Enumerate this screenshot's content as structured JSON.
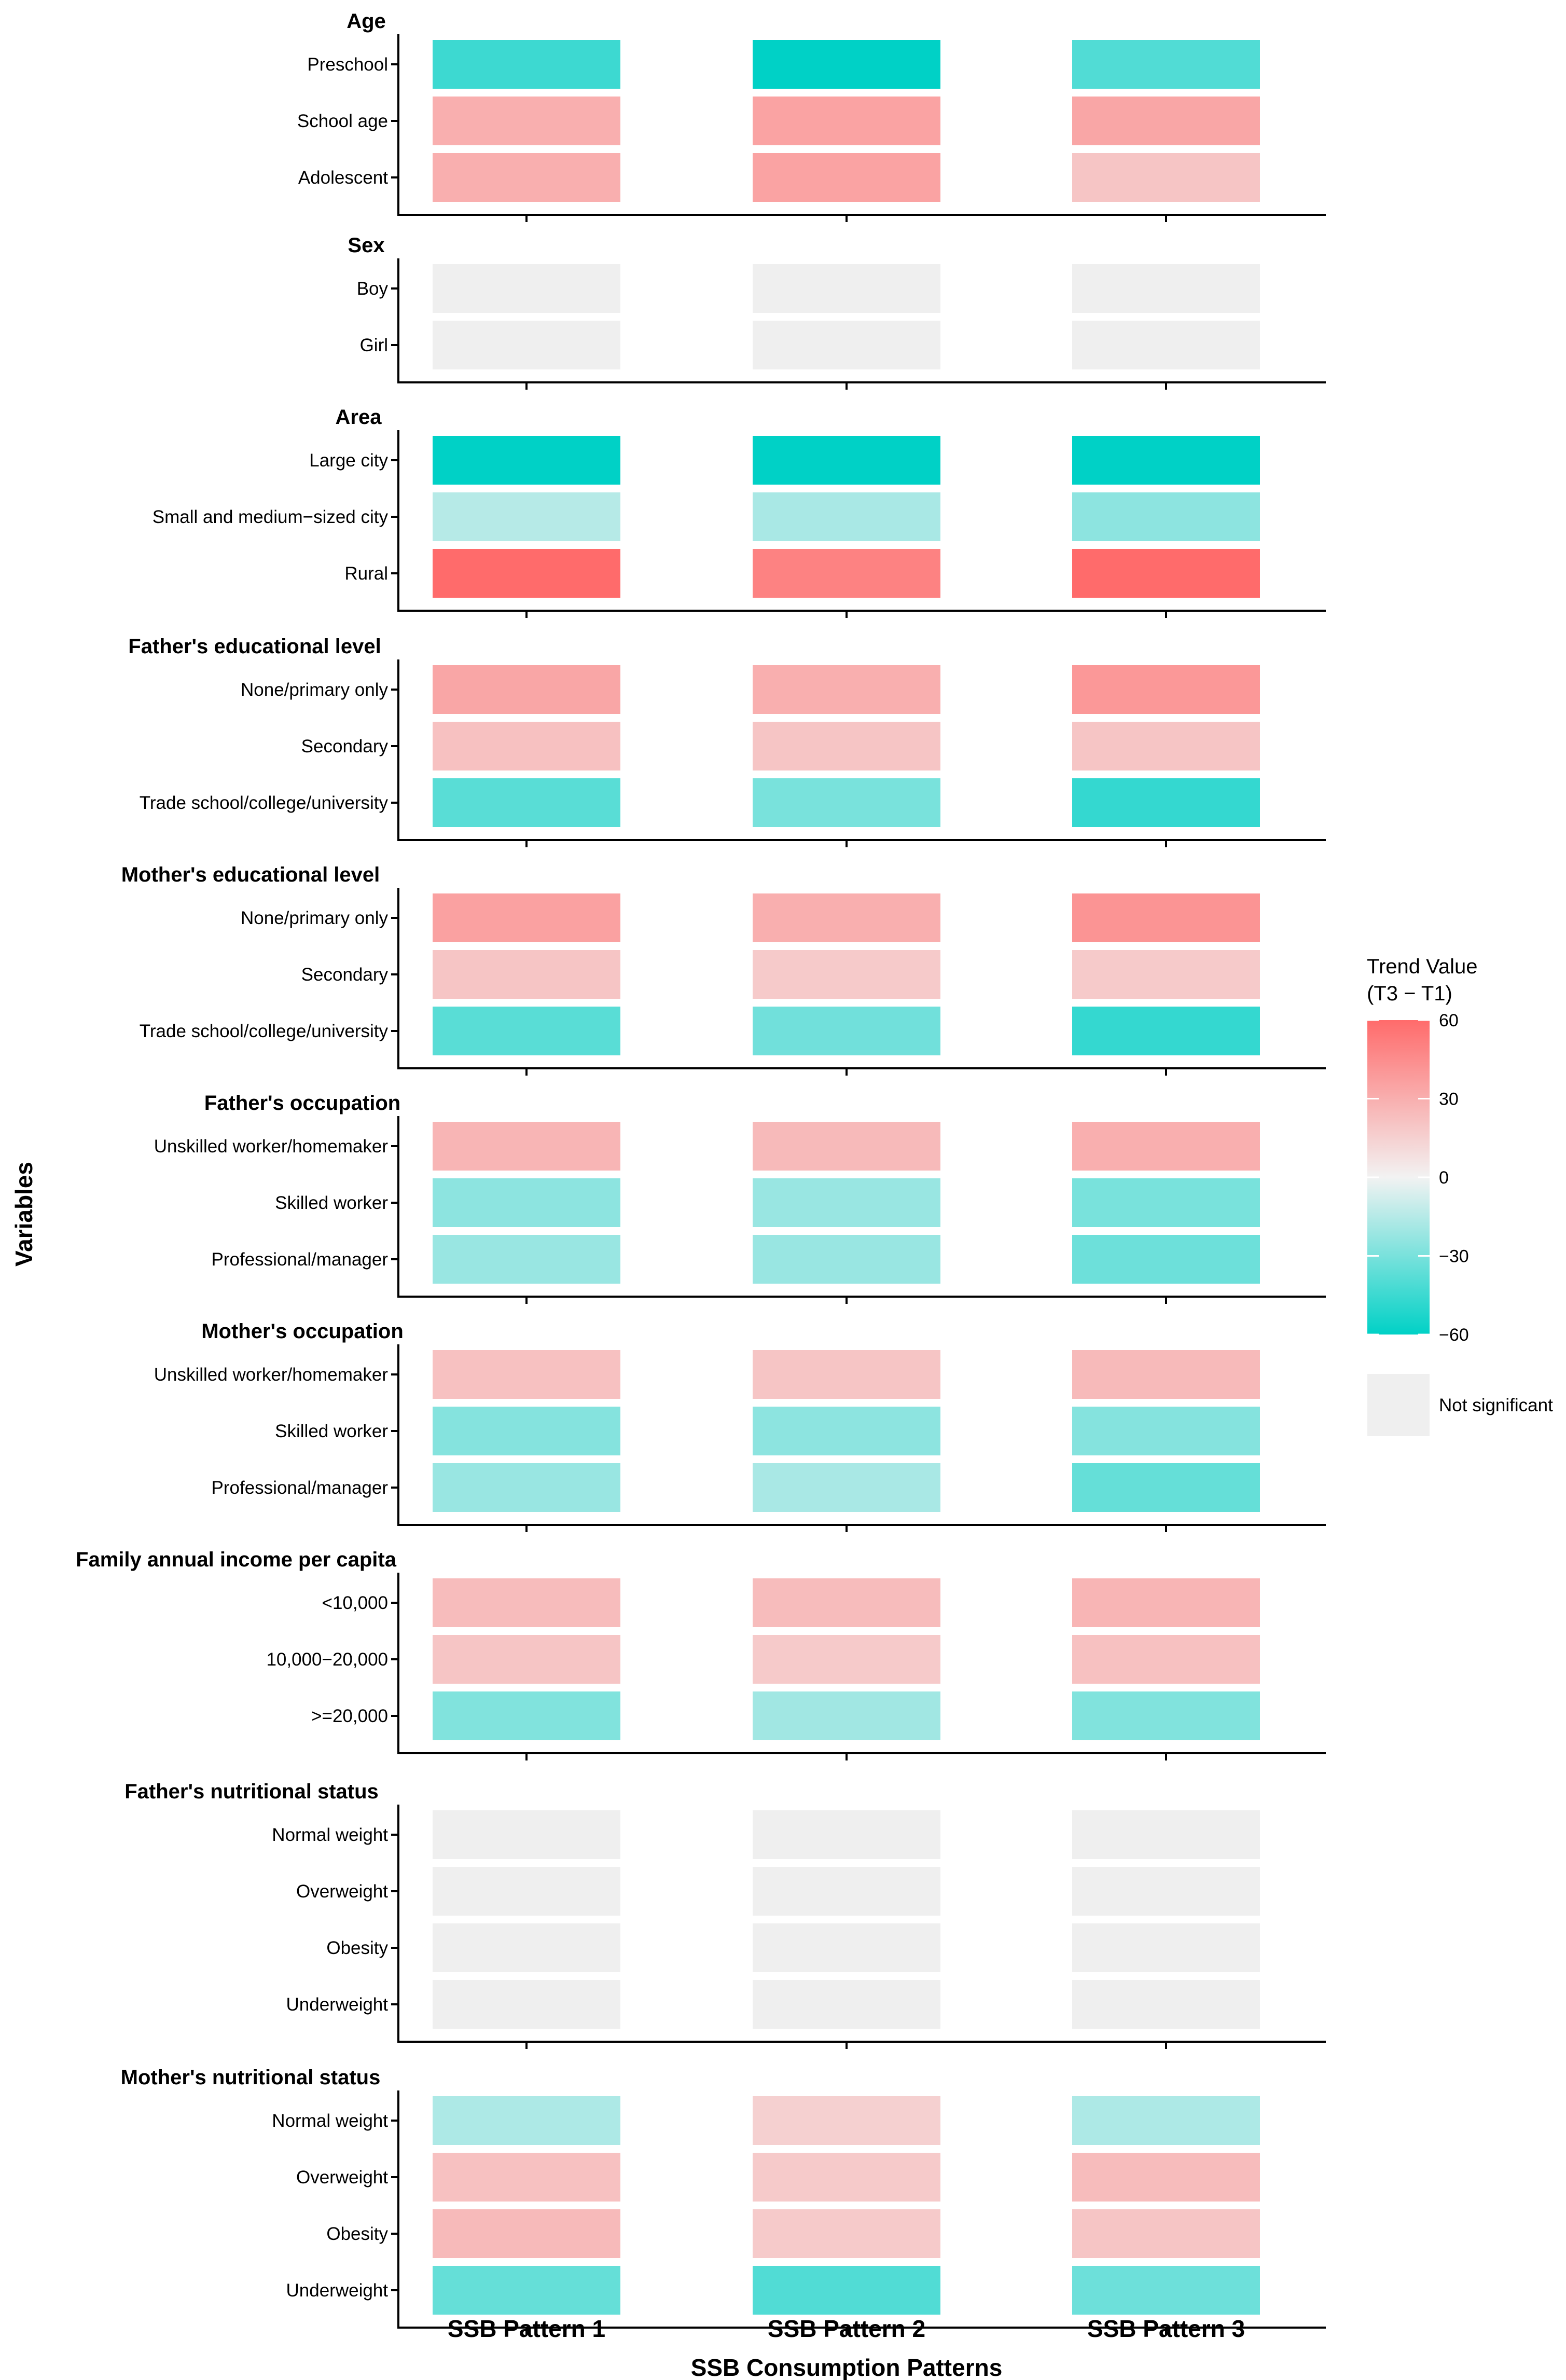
{
  "chart_data": {
    "type": "heatmap",
    "xlabel": "SSB Consumption Patterns",
    "ylabel": "Variables",
    "columns": [
      "SSB Pattern 1",
      "SSB Pattern 2",
      "SSB Pattern 3"
    ],
    "legend": {
      "title_line1": "Trend Value",
      "title_line2": "(T3 − T1)",
      "range": [
        -60,
        60
      ],
      "ticks": [
        60,
        30,
        0,
        -30,
        -60
      ],
      "tick_labels": [
        "60",
        "30",
        "0",
        "−30",
        "−60"
      ],
      "low_color": "#00D1C6",
      "mid_color": "#F2F2F2",
      "high_color": "#FF6B6B",
      "not_significant_label": "Not significant",
      "not_significant_color": "#EFEFEF"
    },
    "panels": [
      {
        "title": "Age",
        "rows": [
          {
            "label": "Preschool",
            "values": [
              -45,
              -60,
              -40
            ]
          },
          {
            "label": "School age",
            "values": [
              30,
              35,
              34
            ]
          },
          {
            "label": "Adolescent",
            "values": [
              30,
              35,
              20
            ]
          }
        ]
      },
      {
        "title": "Sex",
        "rows": [
          {
            "label": "Boy",
            "values": [
              null,
              null,
              null
            ]
          },
          {
            "label": "Girl",
            "values": [
              null,
              null,
              null
            ]
          }
        ]
      },
      {
        "title": "Area",
        "rows": [
          {
            "label": "Large city",
            "values": [
              -60,
              -60,
              -62
            ]
          },
          {
            "label": "Small and medium−sized city",
            "values": [
              -15,
              -18,
              -25
            ]
          },
          {
            "label": "Rural",
            "values": [
              60,
              50,
              60
            ]
          }
        ]
      },
      {
        "title": "Father's educational level",
        "rows": [
          {
            "label": "None/primary only",
            "values": [
              34,
              30,
              40
            ]
          },
          {
            "label": "Secondary",
            "values": [
              22,
              20,
              20
            ]
          },
          {
            "label": "Trade school/college/university",
            "values": [
              -38,
              -30,
              -47
            ]
          }
        ]
      },
      {
        "title": "Mother's educational level",
        "rows": [
          {
            "label": "None/primary only",
            "values": [
              36,
              30,
              42
            ]
          },
          {
            "label": "Secondary",
            "values": [
              20,
              18,
              18
            ]
          },
          {
            "label": "Trade school/college/university",
            "values": [
              -38,
              -32,
              -47
            ]
          }
        ]
      },
      {
        "title": "Father's occupation",
        "rows": [
          {
            "label": "Unskilled worker/homemaker",
            "values": [
              27,
              25,
              30
            ]
          },
          {
            "label": "Skilled worker",
            "values": [
              -25,
              -22,
              -30
            ]
          },
          {
            "label": "Professional/manager",
            "values": [
              -22,
              -22,
              -33
            ]
          }
        ]
      },
      {
        "title": "Mother's occupation",
        "rows": [
          {
            "label": "Unskilled worker/homemaker",
            "values": [
              22,
              20,
              25
            ]
          },
          {
            "label": "Skilled worker",
            "values": [
              -27,
              -25,
              -27
            ]
          },
          {
            "label": "Professional/manager",
            "values": [
              -22,
              -18,
              -35
            ]
          }
        ]
      },
      {
        "title": "Family annual income per capita",
        "rows": [
          {
            "label": "<10,000",
            "values": [
              24,
              24,
              27
            ]
          },
          {
            "label": "10,000−20,000",
            "values": [
              20,
              18,
              22
            ]
          },
          {
            "label": ">=20,000",
            "values": [
              -28,
              -20,
              -28
            ]
          }
        ]
      },
      {
        "title": "Father's nutritional status",
        "rows": [
          {
            "label": "Normal weight",
            "values": [
              null,
              null,
              null
            ]
          },
          {
            "label": "Overweight",
            "values": [
              null,
              null,
              null
            ]
          },
          {
            "label": "Obesity",
            "values": [
              null,
              null,
              null
            ]
          },
          {
            "label": "Underweight",
            "values": [
              null,
              null,
              null
            ]
          }
        ]
      },
      {
        "title": "Mother's nutritional status",
        "rows": [
          {
            "label": "Normal weight",
            "values": [
              -17,
              15,
              -17
            ]
          },
          {
            "label": "Overweight",
            "values": [
              22,
              18,
              24
            ]
          },
          {
            "label": "Obesity",
            "values": [
              25,
              18,
              20
            ]
          },
          {
            "label": "Underweight",
            "values": [
              -35,
              -40,
              -33
            ]
          }
        ]
      }
    ]
  }
}
